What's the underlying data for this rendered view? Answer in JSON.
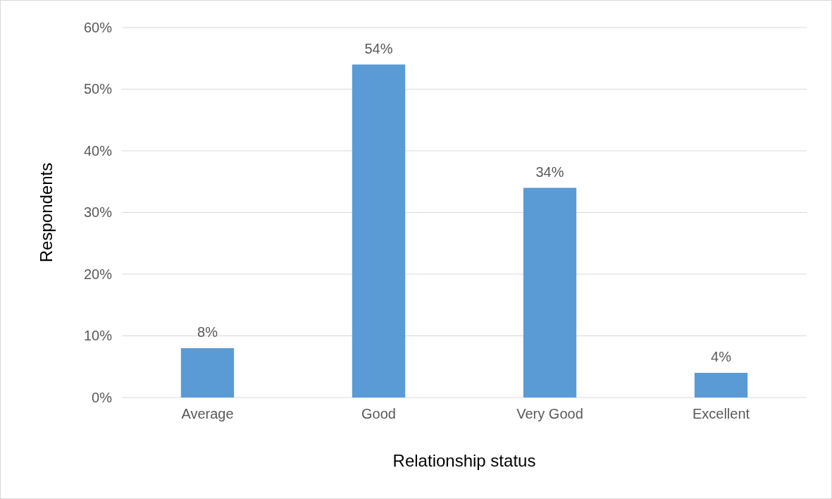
{
  "chart_data": {
    "type": "bar",
    "xlabel": "Relationship status",
    "ylabel": "Respondents",
    "categories": [
      "Average",
      "Good",
      "Very Good",
      "Excellent"
    ],
    "values": [
      8,
      54,
      34,
      4
    ],
    "color": "#5b9bd5",
    "value_labels": [
      "8%",
      "54%",
      "34%",
      "4%"
    ],
    "ylim": [
      0,
      60
    ],
    "yticks": [
      {
        "value": 0,
        "label": "0%"
      },
      {
        "value": 10,
        "label": "10%"
      },
      {
        "value": 20,
        "label": "20%"
      },
      {
        "value": 30,
        "label": "30%"
      },
      {
        "value": 40,
        "label": "40%"
      },
      {
        "value": 50,
        "label": "50%"
      },
      {
        "value": 60,
        "label": "60%"
      }
    ],
    "grid": "y"
  }
}
